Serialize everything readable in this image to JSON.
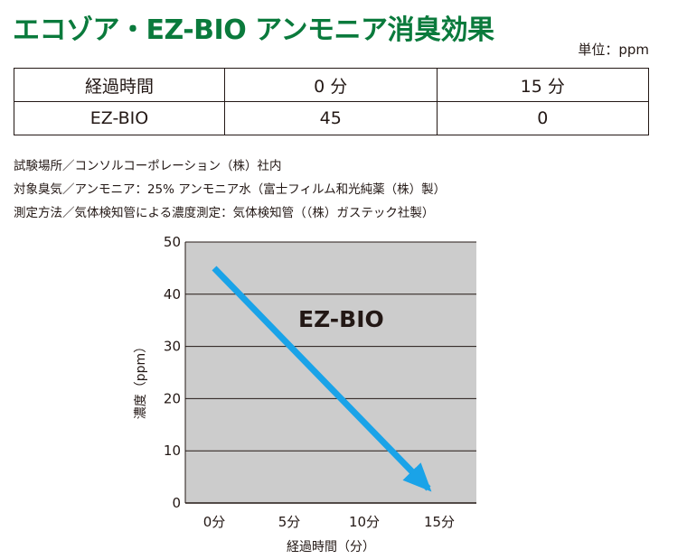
{
  "title": "エコゾア・EZ-BIO アンモニア消臭効果",
  "unit_note": "単位：ppm",
  "table": {
    "header": [
      "経過時間",
      "0 分",
      "15 分"
    ],
    "rows": [
      [
        "EZ-BIO",
        "45",
        "0"
      ]
    ]
  },
  "notes": [
    "試験場所／コンソルコーポレーション（株）社内",
    "対象臭気／アンモニア：25% アンモニア水（富士フィルム和光純薬（株）製）",
    "測定方法／気体検知管による濃度測定：気体検知管（（株）ガステック社製）"
  ],
  "colors": {
    "title": "#0a7a3c",
    "plot_background": "#cccccc",
    "arrow": "#1aa3e8"
  },
  "chart_data": {
    "type": "line",
    "x_categories": [
      "0分",
      "5分",
      "10分",
      "15分"
    ],
    "x_values": [
      0,
      15
    ],
    "series": [
      {
        "name": "EZ-BIO",
        "values": [
          45,
          0
        ]
      }
    ],
    "ylim": [
      0,
      50
    ],
    "y_ticks": [
      0,
      10,
      20,
      30,
      40,
      50
    ],
    "xlabel": "経過時間（分）",
    "ylabel": "濃度（ppm）",
    "grid": true,
    "series_style": "arrow"
  }
}
